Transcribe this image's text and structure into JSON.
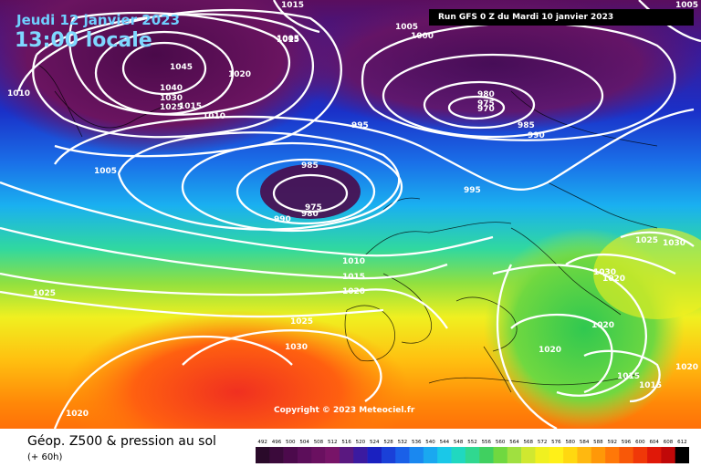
{
  "header": {
    "date": "Jeudi 12 janvier 2023",
    "time": "13:00 locale",
    "run": "Run GFS 0 Z du Mardi 10 janvier 2023"
  },
  "copyright": "Copyright © 2023 Meteociel.fr",
  "footer": {
    "title": "Géop. Z500 & pression au sol",
    "subtitle": "(+ 60h)"
  },
  "isobar_labels": [
    "1015",
    "1005",
    "1000",
    "1005",
    "1015",
    "1020",
    "1045",
    "1040",
    "1030",
    "1025",
    "1015",
    "1010",
    "1010",
    "980",
    "975",
    "970",
    "985",
    "990",
    "995",
    "1005",
    "985",
    "975",
    "980",
    "990",
    "995",
    "1010",
    "1015",
    "1020",
    "1025",
    "1030",
    "1025",
    "1030",
    "1030",
    "1020",
    "1020",
    "1020",
    "1015",
    "1015",
    "1020",
    "1025",
    "1020",
    "1005"
  ],
  "colors": {
    "deep_low": "#4a0a4a",
    "low": "#1a2aa0",
    "mid": "#19a9e0",
    "green": "#2ec848",
    "yellow": "#ffe600",
    "orange": "#ffa000",
    "red": "#f03020",
    "isobar": "#ffffff"
  },
  "scale": {
    "values": [
      "492",
      "496",
      "500",
      "504",
      "508",
      "512",
      "516",
      "520",
      "524",
      "528",
      "532",
      "536",
      "540",
      "544",
      "548",
      "552",
      "556",
      "560",
      "564",
      "568",
      "572",
      "576",
      "580",
      "584",
      "588",
      "592",
      "596",
      "600",
      "604",
      "608",
      "612"
    ],
    "colors": [
      "#2a0a2a",
      "#3b0a3b",
      "#4c0a4c",
      "#5c0e5a",
      "#6a1060",
      "#781468",
      "#5a1880",
      "#3b1aa0",
      "#1a20c0",
      "#1a40d8",
      "#1a60e8",
      "#1a88f0",
      "#1aa8f0",
      "#1ac8e8",
      "#20d8c0",
      "#30d890",
      "#40d060",
      "#70d840",
      "#a0e040",
      "#d0e830",
      "#f0f020",
      "#fff018",
      "#ffd810",
      "#ffb810",
      "#ff9808",
      "#ff7808",
      "#f85808",
      "#f03808",
      "#e01808",
      "#c00808",
      "#000000"
    ]
  }
}
